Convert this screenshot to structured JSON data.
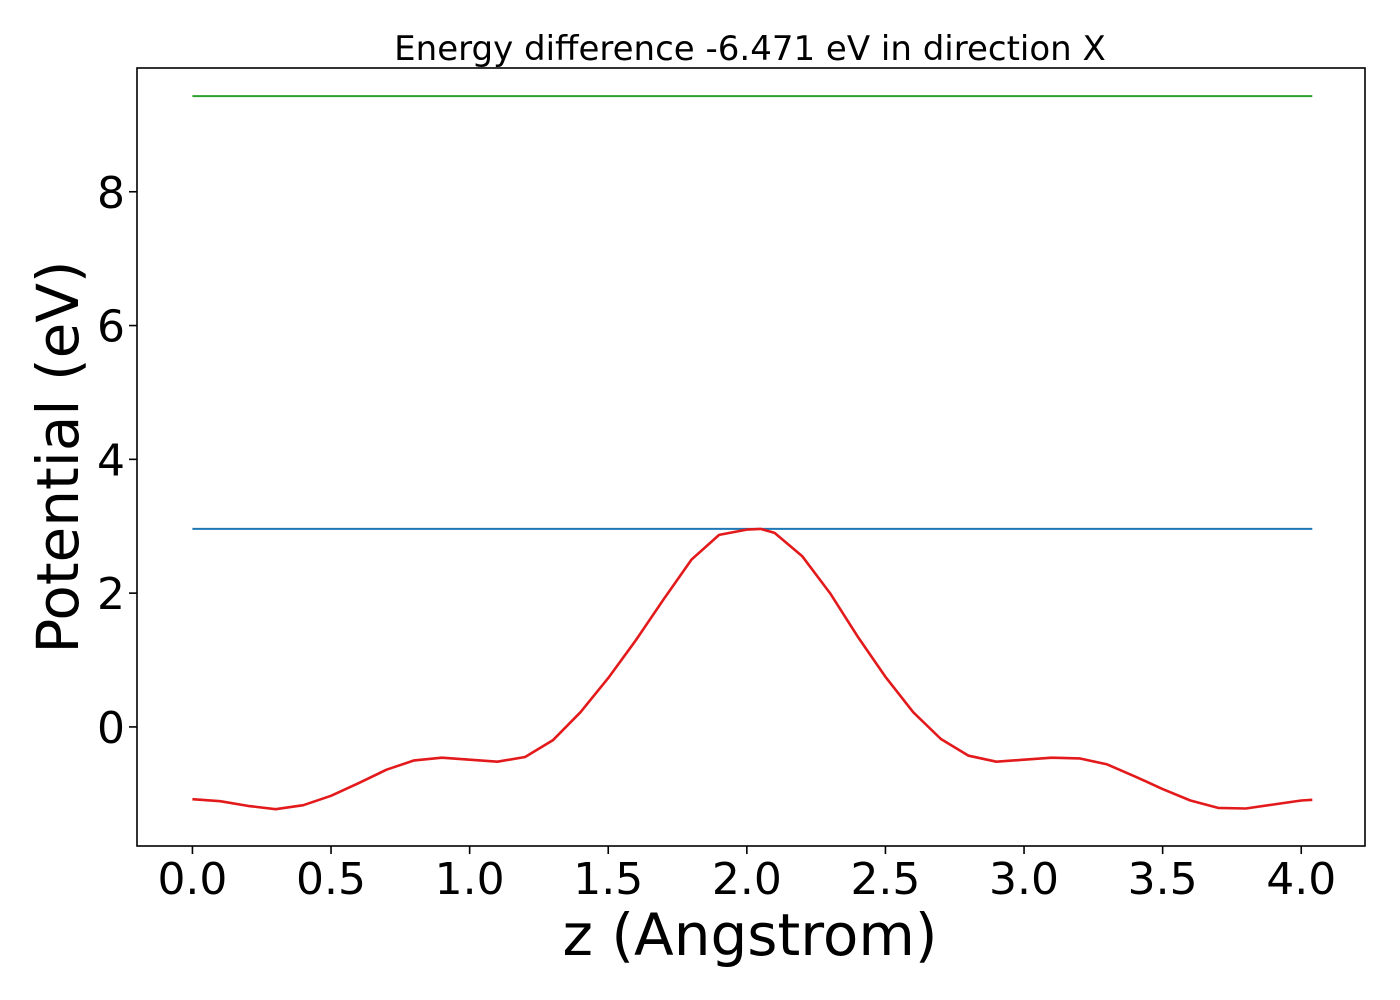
{
  "chart_data": {
    "type": "line",
    "title": "Energy difference -6.471 eV in direction X",
    "xlabel": "z (Angstrom)",
    "ylabel": "Potential (eV)",
    "xlim": [
      -0.2,
      4.23
    ],
    "ylim": [
      -1.78,
      9.85
    ],
    "xticks": [
      0.0,
      0.5,
      1.0,
      1.5,
      2.0,
      2.5,
      3.0,
      3.5,
      4.0
    ],
    "xtick_labels": [
      "0.0",
      "0.5",
      "1.0",
      "1.5",
      "2.0",
      "2.5",
      "3.0",
      "3.5",
      "4.0"
    ],
    "yticks": [
      0,
      2,
      4,
      6,
      8
    ],
    "ytick_labels": [
      "0",
      "2",
      "4",
      "6",
      "8"
    ],
    "grid": false,
    "series": [
      {
        "color": "#2ca02c",
        "x": [
          0.0,
          4.04
        ],
        "y": [
          9.43,
          9.43
        ]
      },
      {
        "color": "#1f77b4",
        "x": [
          0.0,
          4.04
        ],
        "y": [
          2.96,
          2.96
        ]
      },
      {
        "color": "#e31a1c",
        "x": [
          0.0,
          0.1,
          0.2,
          0.3,
          0.4,
          0.5,
          0.6,
          0.7,
          0.8,
          0.9,
          1.0,
          1.1,
          1.2,
          1.3,
          1.4,
          1.5,
          1.6,
          1.7,
          1.8,
          1.9,
          2.0,
          2.05,
          2.1,
          2.2,
          2.3,
          2.4,
          2.5,
          2.6,
          2.7,
          2.8,
          2.9,
          3.0,
          3.1,
          3.2,
          3.3,
          3.4,
          3.5,
          3.6,
          3.7,
          3.8,
          3.9,
          4.0,
          4.04
        ],
        "y": [
          -1.08,
          -1.11,
          -1.18,
          -1.23,
          -1.17,
          -1.03,
          -0.84,
          -0.64,
          -0.5,
          -0.46,
          -0.49,
          -0.52,
          -0.45,
          -0.2,
          0.22,
          0.73,
          1.3,
          1.91,
          2.5,
          2.87,
          2.95,
          2.96,
          2.9,
          2.55,
          2.0,
          1.35,
          0.75,
          0.22,
          -0.18,
          -0.43,
          -0.52,
          -0.49,
          -0.46,
          -0.47,
          -0.56,
          -0.74,
          -0.93,
          -1.1,
          -1.21,
          -1.22,
          -1.16,
          -1.1,
          -1.09
        ]
      }
    ]
  }
}
